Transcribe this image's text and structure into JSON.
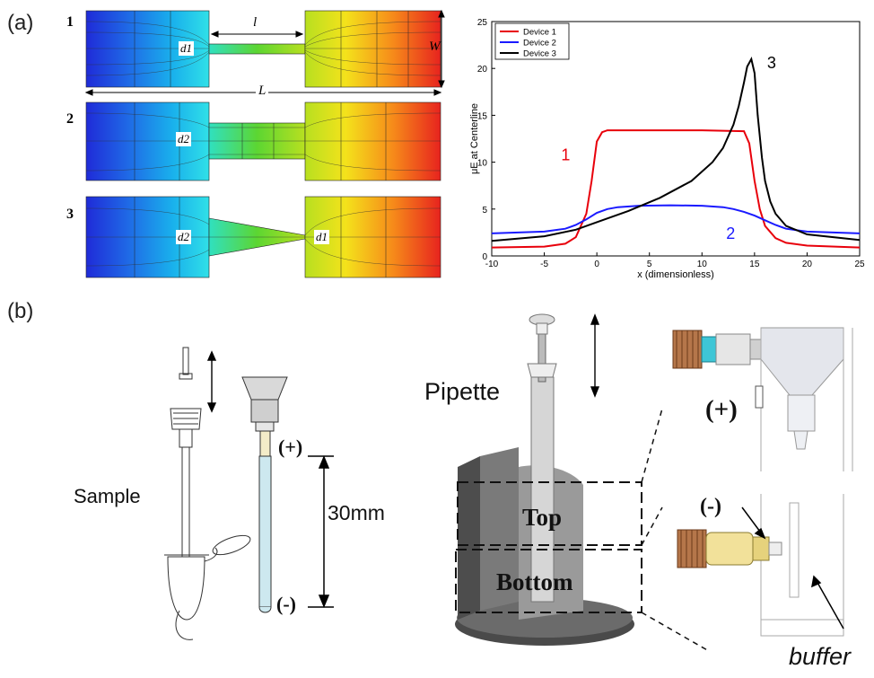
{
  "panel_a": {
    "label": "(a)",
    "devices": [
      {
        "number": "1",
        "left_label": "d1",
        "right_label": ""
      },
      {
        "number": "2",
        "left_label": "d2",
        "right_label": ""
      },
      {
        "number": "3",
        "left_label": "d2",
        "right_label": "d1"
      }
    ],
    "dim_l": "l",
    "dim_W": "W",
    "dim_L": "L"
  },
  "chart_data": {
    "type": "line",
    "xlabel": "x (dimensionless)",
    "ylabel": "μE at Centerline",
    "xlim": [
      -10,
      25
    ],
    "ylim": [
      0,
      25
    ],
    "xticks": [
      -10,
      -5,
      0,
      5,
      10,
      15,
      20,
      25
    ],
    "yticks": [
      0,
      5,
      10,
      15,
      20,
      25
    ],
    "legend_position": "top-left",
    "series": [
      {
        "name": "Device 1",
        "color": "#e8000b",
        "curve_label": "1",
        "x": [
          -10,
          -5,
          -3,
          -2,
          -1,
          -0.5,
          0,
          0.5,
          1,
          5,
          10,
          14,
          14.5,
          15,
          15.5,
          16,
          17,
          18,
          20,
          25
        ],
        "y": [
          0.9,
          1.0,
          1.3,
          2.0,
          4.5,
          8.0,
          12.2,
          13.2,
          13.4,
          13.4,
          13.4,
          13.3,
          12.0,
          8.0,
          5.0,
          3.2,
          1.9,
          1.4,
          1.1,
          0.9
        ]
      },
      {
        "name": "Device 2",
        "color": "#1a1aff",
        "curve_label": "2",
        "x": [
          -10,
          -5,
          -3,
          -2,
          -1,
          0,
          1,
          2,
          4,
          7,
          10,
          12,
          13,
          14,
          15,
          16,
          17,
          18,
          20,
          25
        ],
        "y": [
          2.4,
          2.6,
          2.9,
          3.3,
          3.9,
          4.6,
          5.0,
          5.2,
          5.35,
          5.4,
          5.35,
          5.2,
          5.0,
          4.7,
          4.3,
          3.8,
          3.3,
          2.9,
          2.6,
          2.4
        ]
      },
      {
        "name": "Device 3",
        "color": "#000000",
        "curve_label": "3",
        "x": [
          -10,
          -5,
          -2,
          0,
          3,
          6,
          9,
          11,
          12,
          13,
          13.5,
          14,
          14.3,
          14.7,
          15,
          15.3,
          15.7,
          16,
          16.5,
          17,
          18,
          20,
          25
        ],
        "y": [
          1.6,
          2.1,
          2.8,
          3.6,
          4.8,
          6.2,
          8.0,
          10.0,
          11.5,
          14.0,
          16.0,
          18.5,
          20.2,
          21.0,
          19.5,
          15.0,
          10.5,
          8.0,
          5.8,
          4.5,
          3.2,
          2.3,
          1.7
        ]
      }
    ]
  },
  "panel_b": {
    "label": "(b)",
    "sample": "Sample",
    "plus": "(+)",
    "minus": "(-)",
    "distance": "30mm",
    "pipette": "Pipette",
    "top": "Top",
    "bottom": "Bottom",
    "buffer": "buffer"
  }
}
